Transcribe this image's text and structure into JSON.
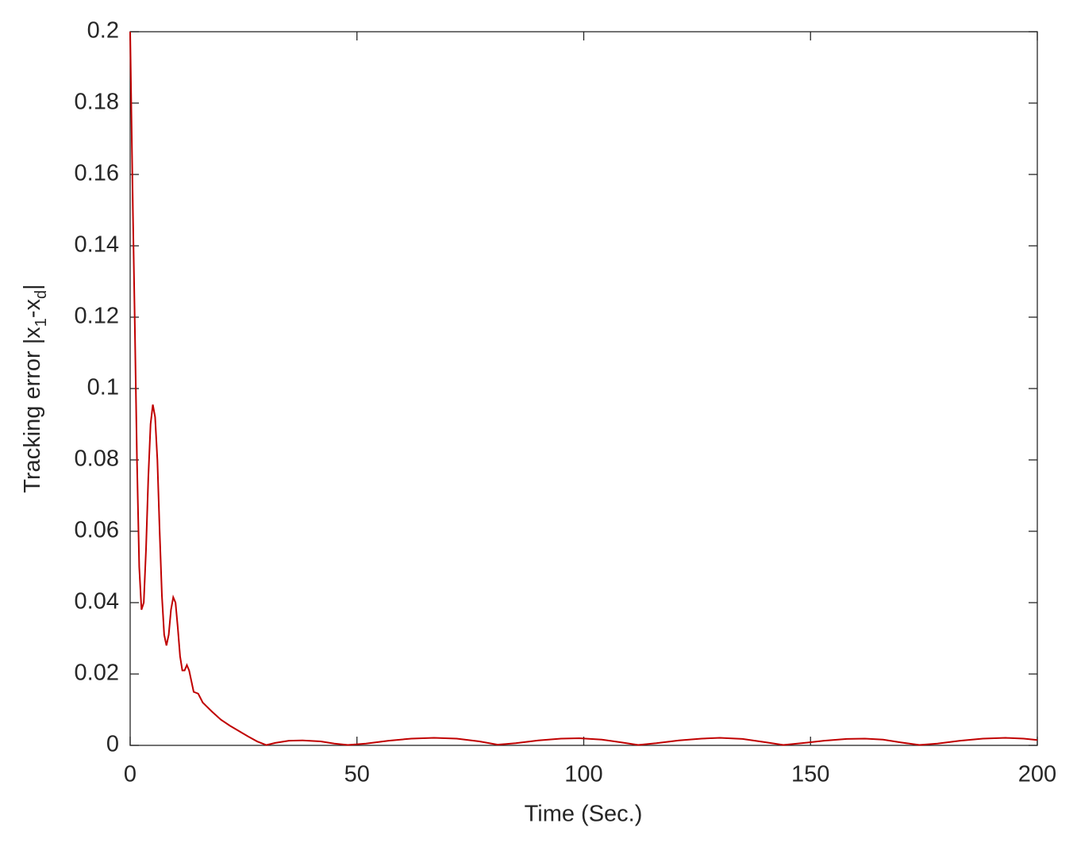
{
  "chart_data": {
    "type": "line",
    "xlabel": "Time (Sec.)",
    "ylabel": [
      {
        "text": "Tracking error |x"
      },
      {
        "text": "1",
        "subscript": true
      },
      {
        "text": "-x"
      },
      {
        "text": "d",
        "subscript": true
      },
      {
        "text": "|"
      }
    ],
    "xlim": [
      0,
      200
    ],
    "ylim": [
      0,
      0.2
    ],
    "xticks": [
      0,
      50,
      100,
      150,
      200
    ],
    "yticks": [
      0,
      0.02,
      0.04,
      0.06,
      0.08,
      0.1,
      0.12,
      0.14,
      0.16,
      0.18,
      0.2
    ],
    "grid": false,
    "series": [
      {
        "color": "#c00000",
        "x": [
          0,
          0.3,
          0.6,
          1,
          1.5,
          2,
          2.5,
          3,
          3.5,
          4,
          4.5,
          5,
          5.5,
          6,
          6.5,
          7,
          7.5,
          8,
          8.5,
          9,
          9.5,
          10,
          10.5,
          11,
          11.5,
          12,
          12.5,
          13,
          13.5,
          14,
          15,
          16,
          18,
          20,
          22,
          24,
          26,
          28,
          30,
          32,
          35,
          38,
          42,
          45,
          48,
          52,
          57,
          62,
          67,
          72,
          77,
          81,
          85,
          90,
          95,
          99,
          104,
          108,
          112,
          116,
          121,
          126,
          130,
          135,
          140,
          144,
          148,
          153,
          158,
          162,
          166,
          170,
          174,
          178,
          183,
          188,
          193,
          197,
          200
        ],
        "values": [
          0.2,
          0.175,
          0.15,
          0.12,
          0.08,
          0.05,
          0.038,
          0.04,
          0.055,
          0.075,
          0.09,
          0.0955,
          0.092,
          0.08,
          0.06,
          0.042,
          0.031,
          0.028,
          0.031,
          0.038,
          0.0415,
          0.04,
          0.033,
          0.025,
          0.021,
          0.021,
          0.0225,
          0.021,
          0.018,
          0.015,
          0.0145,
          0.012,
          0.0095,
          0.0072,
          0.0055,
          0.004,
          0.0025,
          0.0011,
          0.0001,
          0.0007,
          0.0013,
          0.0014,
          0.0011,
          0.0005,
          0.0001,
          0.0005,
          0.0013,
          0.0019,
          0.0021,
          0.0019,
          0.0011,
          0.0002,
          0.0006,
          0.0014,
          0.0019,
          0.002,
          0.0016,
          0.0009,
          0.0001,
          0.0006,
          0.0014,
          0.0019,
          0.0021,
          0.0018,
          0.0009,
          0.0001,
          0.0006,
          0.0013,
          0.0018,
          0.0019,
          0.0016,
          0.0008,
          0.0001,
          0.0005,
          0.0013,
          0.0019,
          0.0021,
          0.0019,
          0.0015
        ]
      }
    ]
  }
}
